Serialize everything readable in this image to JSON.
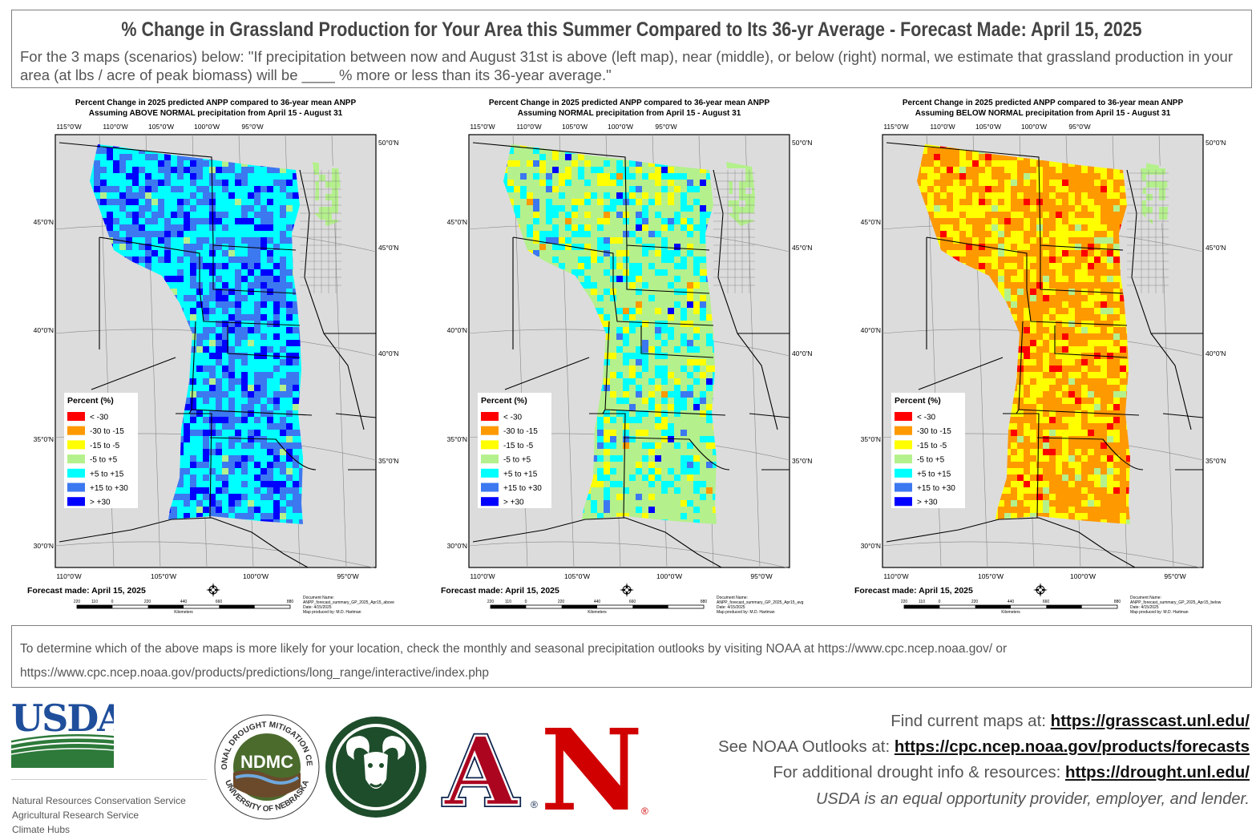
{
  "header": {
    "title": "% Change in Grassland Production for Your Area this Summer Compared to Its 36-yr Average - Forecast Made: April 15, 2025",
    "subtitle": "For the 3 maps (scenarios) below: \"If precipitation between now and August 31st is above (left map), near (middle), or below (right) normal, we estimate that grassland production in your area (at lbs / acre of peak biomass) will be ____ % more or less than its 36-year average.\""
  },
  "maps": [
    {
      "title1": "Percent Change in 2025 predicted ANPP compared to 36-year mean ANPP",
      "title2": "Assuming ABOVE NORMAL precipitation from April 15 - August 31",
      "forecast_made": "Forecast made: April 15, 2025",
      "doc_name": "Document Name:",
      "doc_file": "ANPP_forecast_summary_GP_2025_Apr15_above",
      "doc_date": "Date: 4/15/2025",
      "doc_author": "Map produced by: M.D. Hartman",
      "scenario": "above"
    },
    {
      "title1": "Percent Change in 2025 predicted ANPP compared to 36-year mean ANPP",
      "title2": "Assuming NORMAL precipitation from April 15 - August 31",
      "forecast_made": "Forecast made: April 15, 2025",
      "doc_name": "Document Name:",
      "doc_file": "ANPP_forecast_summary_GP_2025_Apr15_avg",
      "doc_date": "Date: 4/15/2025",
      "doc_author": "Map produced by: M.D. Hartman",
      "scenario": "normal"
    },
    {
      "title1": "Percent Change in 2025 predicted ANPP compared to 36-year mean ANPP",
      "title2": "Assuming BELOW NORMAL precipitation from April 15 - August 31",
      "forecast_made": "Forecast made: April 15, 2025",
      "doc_name": "Document Name:",
      "doc_file": "ANPP_forecast_summary_GP_2025_Apr15_below",
      "doc_date": "Date: 4/15/2025",
      "doc_author": "Map produced by: M.D. Hartman",
      "scenario": "below"
    }
  ],
  "axis_labels": {
    "top": [
      "115°0'W",
      "110°0'W",
      "105°0'W",
      "100°0'W",
      "95°0'W"
    ],
    "bottom": [
      "110°0'W",
      "105°0'W",
      "100°0'W",
      "95°0'W"
    ],
    "left": [
      "45°0'N",
      "40°0'N",
      "35°0'N",
      "30°0'N"
    ],
    "right": [
      "50°0'N",
      "45°0'N",
      "40°0'N",
      "35°0'N"
    ]
  },
  "scale_bar": {
    "ticks": [
      "220",
      "110",
      "0",
      "220",
      "440",
      "660",
      "880"
    ],
    "unit": "Kilometers"
  },
  "legend": {
    "title": "Percent (%)",
    "classes": [
      {
        "label": "< -30",
        "color": "#ff0000"
      },
      {
        "label": "-30 to -15",
        "color": "#ff9900"
      },
      {
        "label": "-15 to -5",
        "color": "#ffff00"
      },
      {
        "label": "-5 to +5",
        "color": "#b4f08c"
      },
      {
        "label": "+5 to +15",
        "color": "#00ffff"
      },
      {
        "label": "+15 to +30",
        "color": "#3c78f0"
      },
      {
        "label": "> +30",
        "color": "#0000ff"
      }
    ]
  },
  "footer_note": {
    "line1": "To determine which of the above maps is more likely for your location, check the monthly and seasonal precipitation outlooks by visiting NOAA at https://www.cpc.ncep.noaa.gov/ or",
    "line2": "https://www.cpc.ncep.noaa.gov/products/predictions/long_range/interactive/index.php"
  },
  "usda": {
    "logo_text": "USDA",
    "agencies": [
      "Natural Resources Conservation Service",
      "Agricultural Research Service",
      "Climate Hubs"
    ]
  },
  "partner_logos": {
    "ndmc_ring_top": "NATIONAL DROUGHT MITIGATION CENTER",
    "ndmc_ring_bottom": "UNIVERSITY OF NEBRASKA",
    "ndmc_abbrev": "NDMC",
    "arizona_letter": "A",
    "nebraska_letter": "N",
    "registered": "®"
  },
  "links": [
    {
      "prefix": "Find current maps at: ",
      "url": "https://grasscast.unl.edu/"
    },
    {
      "prefix": "See NOAA Outlooks at: ",
      "url": "https://cpc.ncep.noaa.gov/products/forecasts"
    },
    {
      "prefix": "For additional drought info & resources: ",
      "url": "https://drought.unl.edu/"
    }
  ],
  "eeo": "USDA is an equal opportunity provider, employer, and lender."
}
